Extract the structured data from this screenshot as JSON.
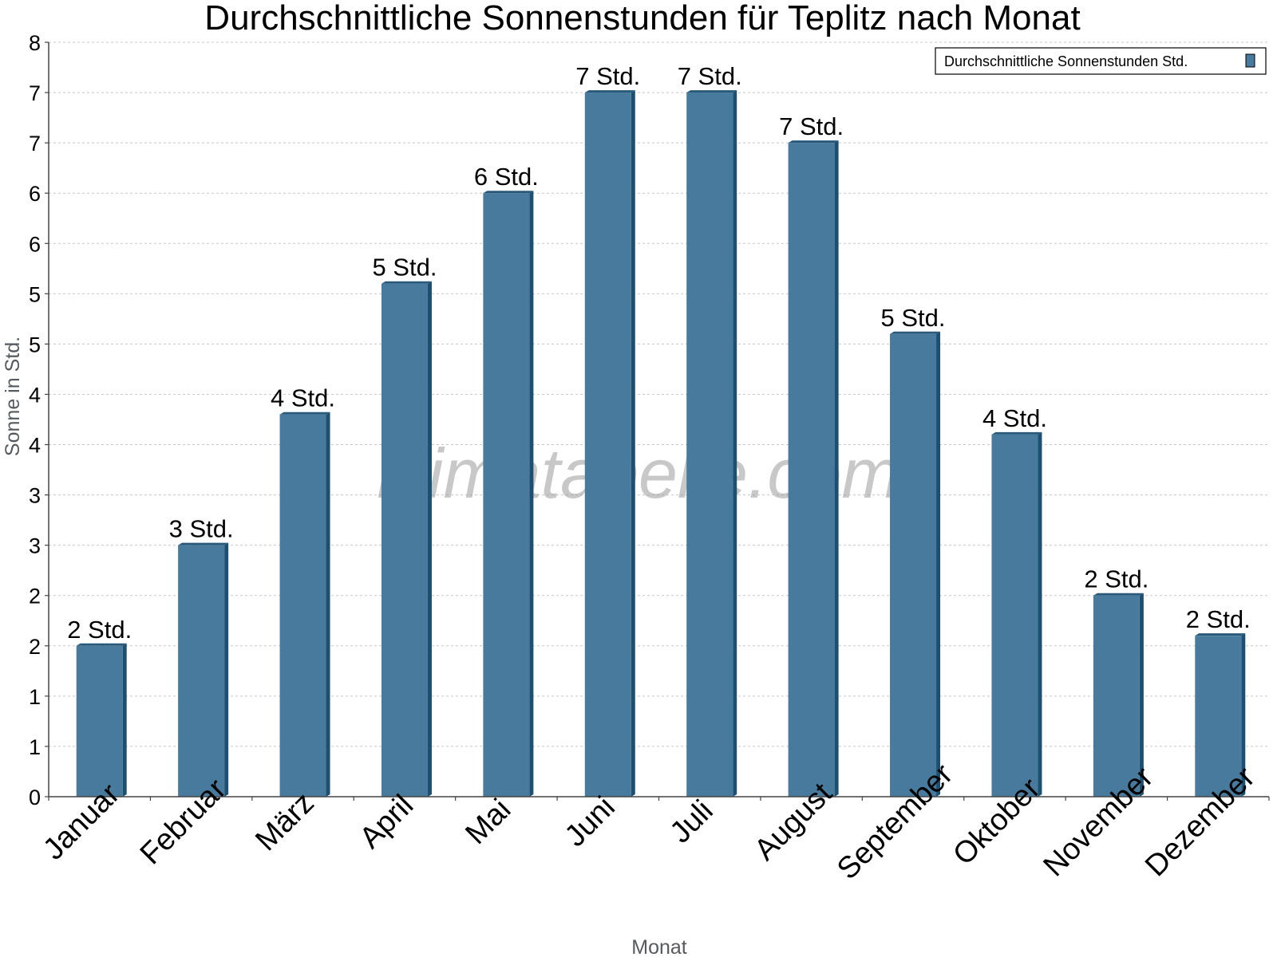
{
  "watermark": "klimatabelle.com",
  "colors": {
    "bar": "#477a9c",
    "bar_side": "#1d4f70",
    "bar_top": "#28597a",
    "grid": "#c8c8c8",
    "axis": "#444444"
  },
  "chart_data": {
    "type": "bar",
    "title": "Durchschnittliche Sonnenstunden für Teplitz nach Monat",
    "xlabel": "Monat",
    "ylabel": "Sonne in Std.",
    "ylim": [
      0,
      7.5
    ],
    "grid": true,
    "legend_position": "top-right",
    "y_ticks": [
      0,
      0.5,
      1,
      1.5,
      2,
      2.5,
      3,
      3.5,
      4,
      4.5,
      5,
      5.5,
      6,
      6.5,
      7,
      7.5
    ],
    "y_tick_labels": [
      "0",
      "1",
      "1",
      "2",
      "2",
      "3",
      "3",
      "4",
      "4",
      "5",
      "5",
      "6",
      "6",
      "7",
      "7",
      "8"
    ],
    "categories": [
      "Januar",
      "Februar",
      "März",
      "April",
      "Mai",
      "Juni",
      "Juli",
      "August",
      "September",
      "Oktober",
      "November",
      "Dezember"
    ],
    "series": [
      {
        "name": "Durchschnittliche Sonnenstunden Std.",
        "values": [
          1.5,
          2.5,
          3.8,
          5.1,
          6.0,
          7.0,
          7.0,
          6.5,
          4.6,
          3.6,
          2.0,
          1.6
        ],
        "labels": [
          "2 Std.",
          "3 Std.",
          "4 Std.",
          "5 Std.",
          "6 Std.",
          "7 Std.",
          "7 Std.",
          "7 Std.",
          "5 Std.",
          "4 Std.",
          "2 Std.",
          "2 Std."
        ]
      }
    ]
  }
}
